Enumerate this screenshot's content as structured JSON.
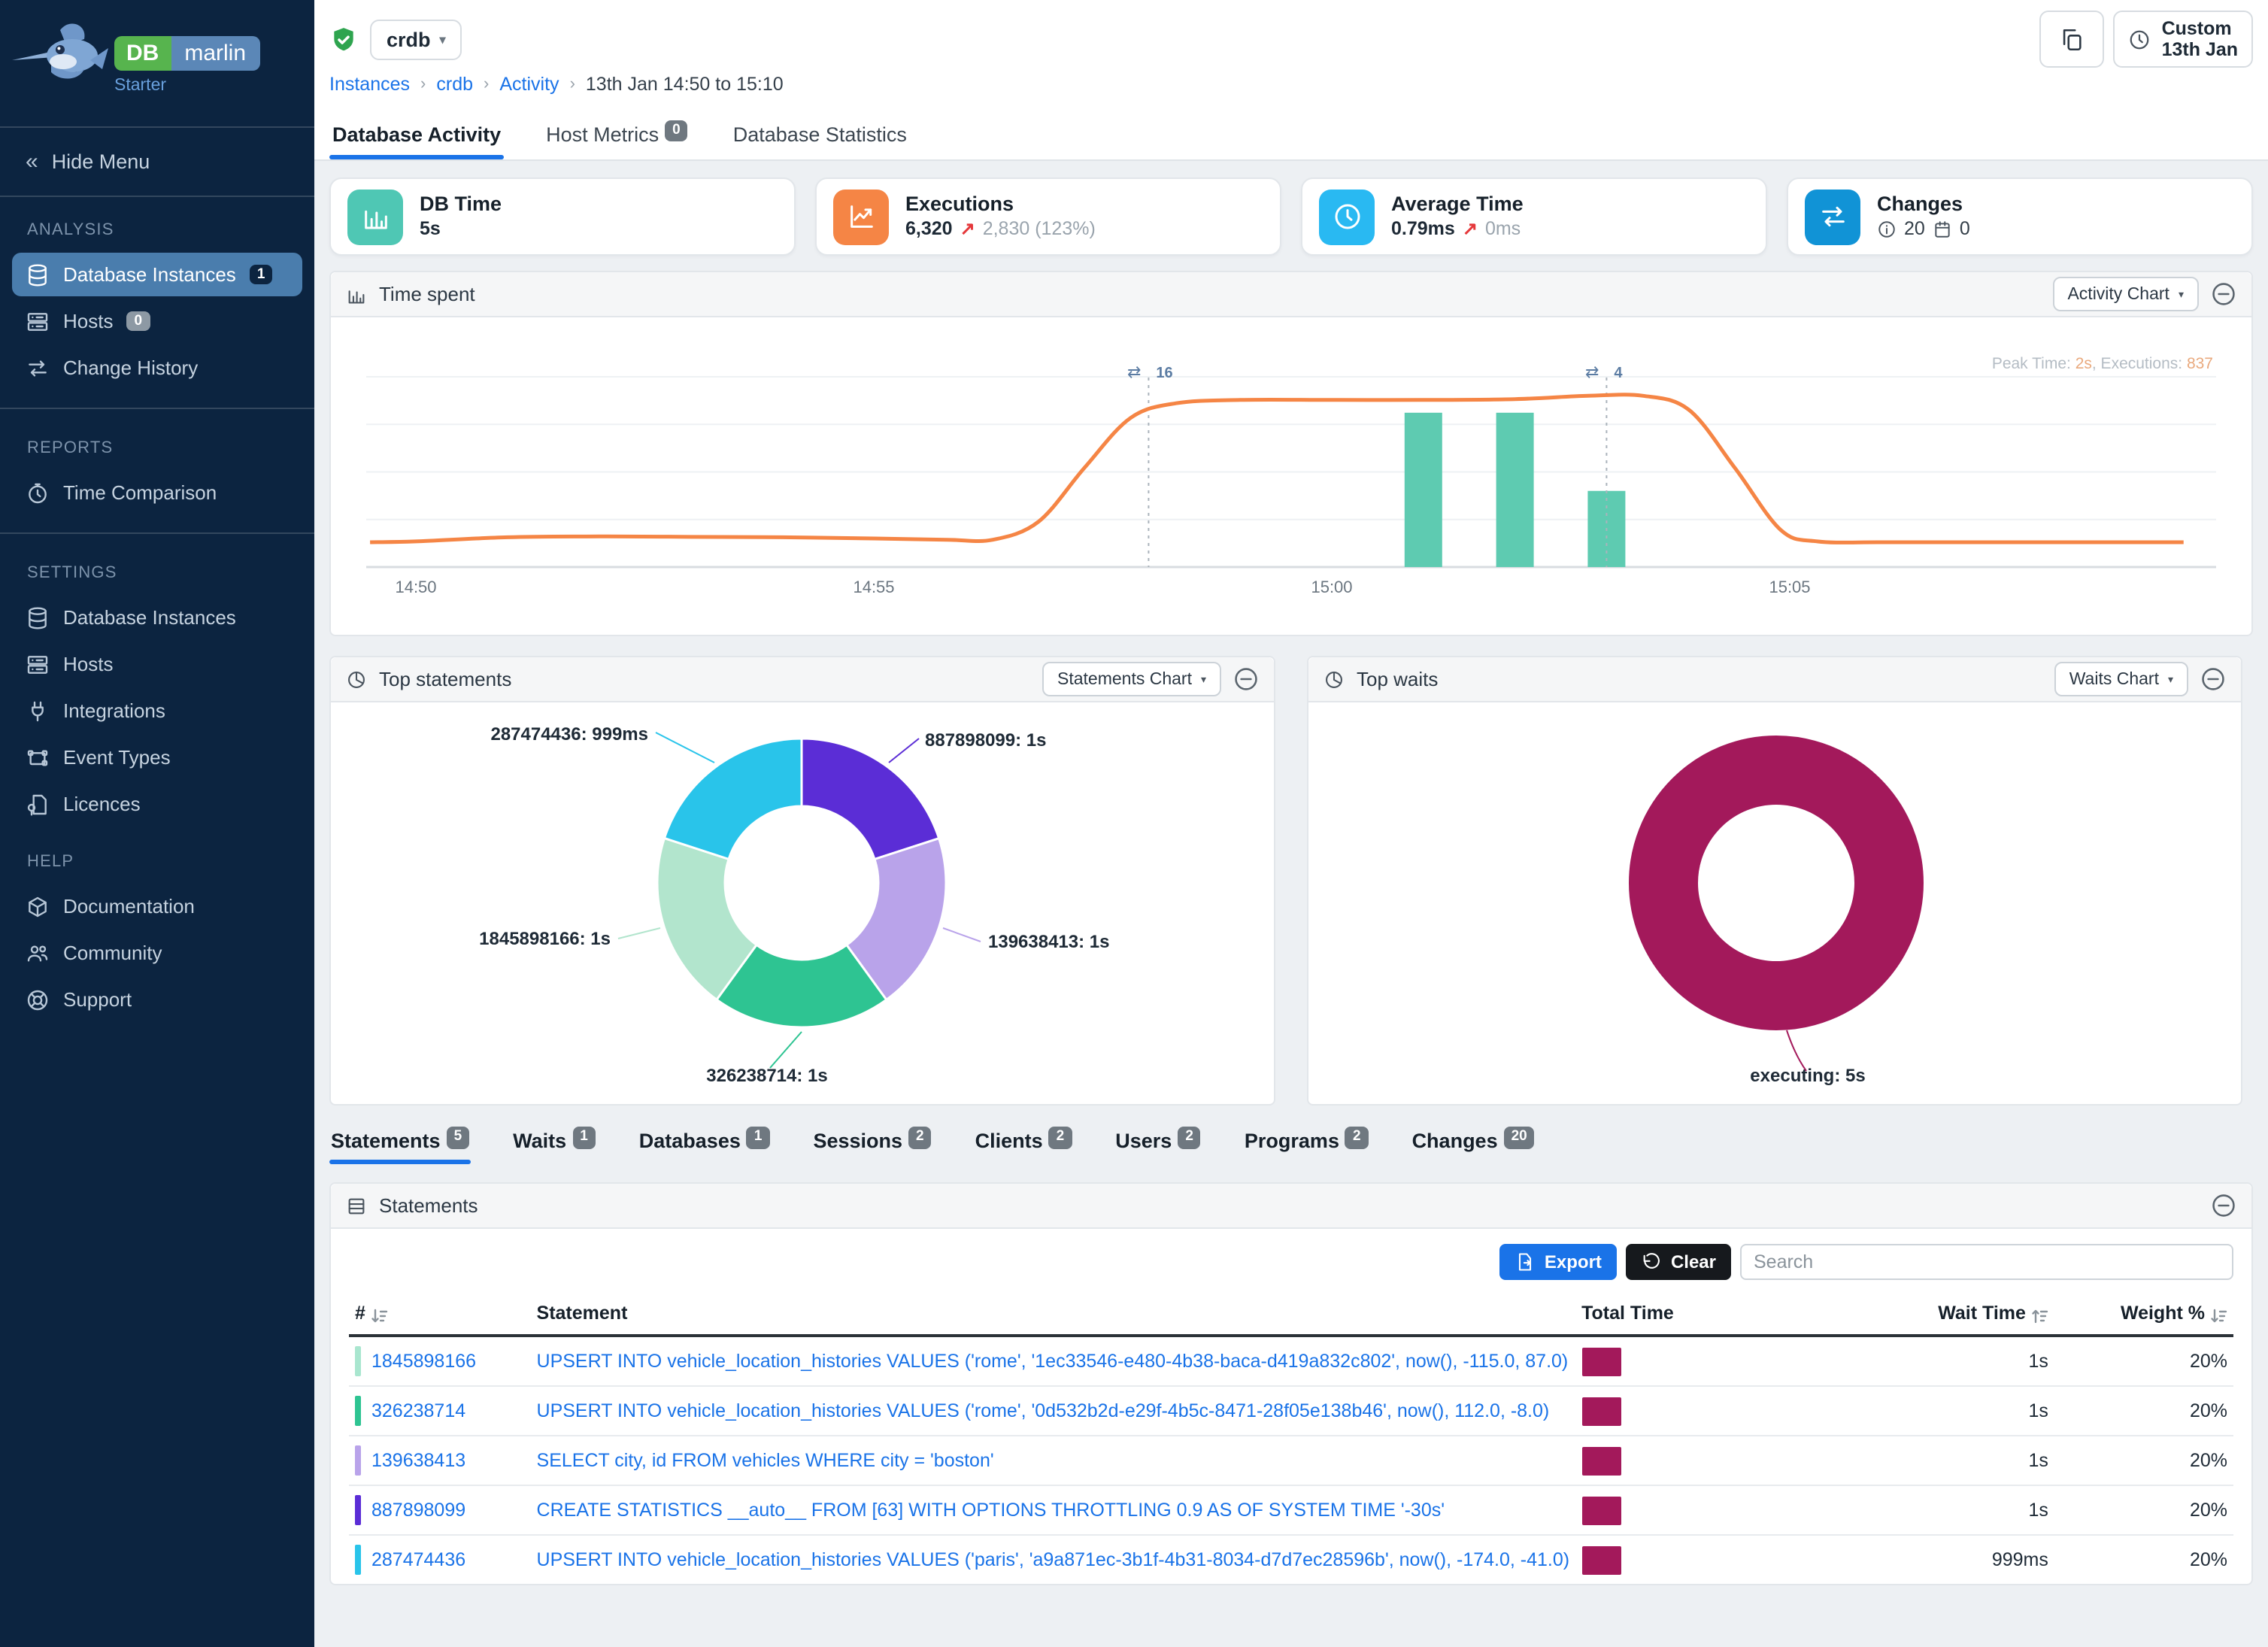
{
  "brand": {
    "db": "DB",
    "name": "marlin",
    "edition": "Starter"
  },
  "colors": {
    "accent": "#1a73e8",
    "line_series": "#f58545",
    "exec_bars": "#5ecbb1",
    "wait_maroon": "#a3195b",
    "sidebar_active": "#4a7dad",
    "card_db_time": "#4fc7b4",
    "card_executions": "#f58545",
    "card_avg_time": "#29b9f2",
    "card_changes": "#1193d6"
  },
  "sidebar": {
    "hide_menu": "Hide Menu",
    "sections": [
      {
        "title": "ANALYSIS",
        "items": [
          {
            "label": "Database Instances",
            "icon": "database",
            "badge": "1",
            "badge_style": "dark",
            "active": true
          },
          {
            "label": "Hosts",
            "icon": "server",
            "badge": "0",
            "badge_style": "gray"
          },
          {
            "label": "Change History",
            "icon": "exchange"
          }
        ]
      },
      {
        "title": "REPORTS",
        "items": [
          {
            "label": "Time Comparison",
            "icon": "clock"
          }
        ]
      },
      {
        "title": "SETTINGS",
        "items": [
          {
            "label": "Database Instances",
            "icon": "database"
          },
          {
            "label": "Hosts",
            "icon": "server"
          },
          {
            "label": "Integrations",
            "icon": "plug"
          },
          {
            "label": "Event Types",
            "icon": "event"
          },
          {
            "label": "Licences",
            "icon": "licence"
          }
        ]
      },
      {
        "title": "HELP",
        "items": [
          {
            "label": "Documentation",
            "icon": "docs"
          },
          {
            "label": "Community",
            "icon": "community"
          },
          {
            "label": "Support",
            "icon": "support"
          }
        ]
      }
    ]
  },
  "header": {
    "instance": "crdb",
    "breadcrumb": [
      "Instances",
      "crdb",
      "Activity",
      "13th Jan 14:50 to 15:10"
    ],
    "time_button": {
      "line1": "Custom",
      "line2": "13th Jan"
    },
    "tabs": [
      {
        "label": "Database Activity",
        "active": true
      },
      {
        "label": "Host Metrics",
        "badge": "0"
      },
      {
        "label": "Database Statistics"
      }
    ]
  },
  "metric_cards": [
    {
      "title": "DB Time",
      "value": "5s",
      "icon": "chart-bar",
      "color": "#4fc7b4"
    },
    {
      "title": "Executions",
      "value": "6,320",
      "delta": "2,830 (123%)",
      "icon": "chart-line",
      "color": "#f58545"
    },
    {
      "title": "Average Time",
      "value": "0.79ms",
      "delta": "0ms",
      "icon": "clock-face",
      "color": "#29b9f2"
    },
    {
      "title": "Changes",
      "icon": "exchange",
      "color": "#1193d6",
      "info_count": "20",
      "event_count": "0"
    }
  ],
  "panels": {
    "time_spent": {
      "title": "Time spent",
      "button": "Activity Chart"
    },
    "top_statements": {
      "title": "Top statements",
      "button": "Statements Chart"
    },
    "top_waits": {
      "title": "Top waits",
      "button": "Waits Chart"
    },
    "statements": {
      "title": "Statements",
      "export_label": "Export",
      "clear_label": "Clear",
      "search_placeholder": "Search"
    }
  },
  "chart_data": [
    {
      "id": "time_spent",
      "type": "line",
      "title": "Time spent",
      "x_ticks": [
        "14:50",
        "14:55",
        "15:00",
        "15:05"
      ],
      "x_unit": "time of day",
      "y_unit": "seconds",
      "ylim": [
        0,
        2.3
      ],
      "grid": true,
      "note": {
        "prefix": "Peak Time: ",
        "peak": "2s",
        "mid": ", Executions: ",
        "executions": "837"
      },
      "series": [
        {
          "name": "DB Time",
          "type": "line",
          "color": "#f58545",
          "points": [
            [
              -0.5,
              0.3
            ],
            [
              0,
              0.31
            ],
            [
              1,
              0.36
            ],
            [
              2,
              0.37
            ],
            [
              3,
              0.365
            ],
            [
              4,
              0.36
            ],
            [
              5,
              0.345
            ],
            [
              5.8,
              0.33
            ],
            [
              6.3,
              0.33
            ],
            [
              6.8,
              0.55
            ],
            [
              7.3,
              1.2
            ],
            [
              7.8,
              1.8
            ],
            [
              8.3,
              1.98
            ],
            [
              9,
              2.02
            ],
            [
              10,
              2.02
            ],
            [
              11,
              2.02
            ],
            [
              12,
              2.03
            ],
            [
              12.8,
              2.07
            ],
            [
              13.4,
              2.07
            ],
            [
              13.9,
              1.9
            ],
            [
              14.4,
              1.2
            ],
            [
              14.9,
              0.45
            ],
            [
              15.3,
              0.31
            ],
            [
              16,
              0.3
            ],
            [
              17,
              0.3
            ],
            [
              18,
              0.3
            ],
            [
              19.3,
              0.3
            ]
          ]
        },
        {
          "name": "Executions",
          "type": "bar",
          "color": "#5ecbb1",
          "scale_note": "hidden secondary axis, peak executions 837",
          "points": [
            [
              11,
              837
            ],
            [
              12,
              837
            ],
            [
              13,
              414
            ]
          ],
          "bar_heights_fraction_of_plot": [
            0.76,
            0.76,
            0.375
          ]
        }
      ],
      "annotations": [
        {
          "x_minutes_from_1450": 8,
          "label": "16",
          "icon": "exchange"
        },
        {
          "x_minutes_from_1450": 13,
          "label": "4",
          "icon": "exchange"
        }
      ]
    },
    {
      "id": "top_statements",
      "type": "pie",
      "title": "Top statements",
      "segments": [
        {
          "id": "887898099",
          "label": "887898099: 1s",
          "value": 1.0,
          "color": "#5b2dd6"
        },
        {
          "id": "139638413",
          "label": "139638413: 1s",
          "value": 1.0,
          "color": "#b9a3ea"
        },
        {
          "id": "326238714",
          "label": "326238714: 1s",
          "value": 1.0,
          "color": "#2ec492"
        },
        {
          "id": "1845898166",
          "label": "1845898166: 1s",
          "value": 1.0,
          "color": "#b2e5cd"
        },
        {
          "id": "287474436",
          "label": "287474436: 999ms",
          "value": 0.999,
          "color": "#29c4ea"
        }
      ]
    },
    {
      "id": "top_waits",
      "type": "pie",
      "title": "Top waits",
      "segments": [
        {
          "id": "executing",
          "label": "executing: 5s",
          "value": 5,
          "color": "#a3195b"
        }
      ]
    }
  ],
  "bottom_tabs": [
    {
      "label": "Statements",
      "badge": "5",
      "active": true
    },
    {
      "label": "Waits",
      "badge": "1"
    },
    {
      "label": "Databases",
      "badge": "1"
    },
    {
      "label": "Sessions",
      "badge": "2"
    },
    {
      "label": "Clients",
      "badge": "2"
    },
    {
      "label": "Users",
      "badge": "2"
    },
    {
      "label": "Programs",
      "badge": "2"
    },
    {
      "label": "Changes",
      "badge": "20"
    }
  ],
  "statements_table": {
    "columns": [
      "#",
      "Statement",
      "Total Time",
      "Wait Time",
      "Weight %"
    ],
    "rows": [
      {
        "id": "1845898166",
        "chip_color": "#a9e6cf",
        "statement": "UPSERT INTO vehicle_location_histories VALUES ('rome', '1ec33546-e480-4b38-baca-d419a832c802', now(), -115.0, 87.0)",
        "wait_time": "1s",
        "weight": "20%"
      },
      {
        "id": "326238714",
        "chip_color": "#2ec492",
        "statement": "UPSERT INTO vehicle_location_histories VALUES ('rome', '0d532b2d-e29f-4b5c-8471-28f05e138b46', now(), 112.0, -8.0)",
        "wait_time": "1s",
        "weight": "20%"
      },
      {
        "id": "139638413",
        "chip_color": "#b9a3ea",
        "statement": "SELECT city, id FROM vehicles WHERE city = 'boston'",
        "wait_time": "1s",
        "weight": "20%"
      },
      {
        "id": "887898099",
        "chip_color": "#5b2dd6",
        "statement": "CREATE STATISTICS __auto__ FROM [63] WITH OPTIONS THROTTLING 0.9 AS OF SYSTEM TIME '-30s'",
        "wait_time": "1s",
        "weight": "20%"
      },
      {
        "id": "287474436",
        "chip_color": "#29c4ea",
        "statement": "UPSERT INTO vehicle_location_histories VALUES ('paris', 'a9a871ec-3b1f-4b31-8034-d7d7ec28596b', now(), -174.0, -41.0)",
        "wait_time": "999ms",
        "weight": "20%"
      }
    ]
  }
}
